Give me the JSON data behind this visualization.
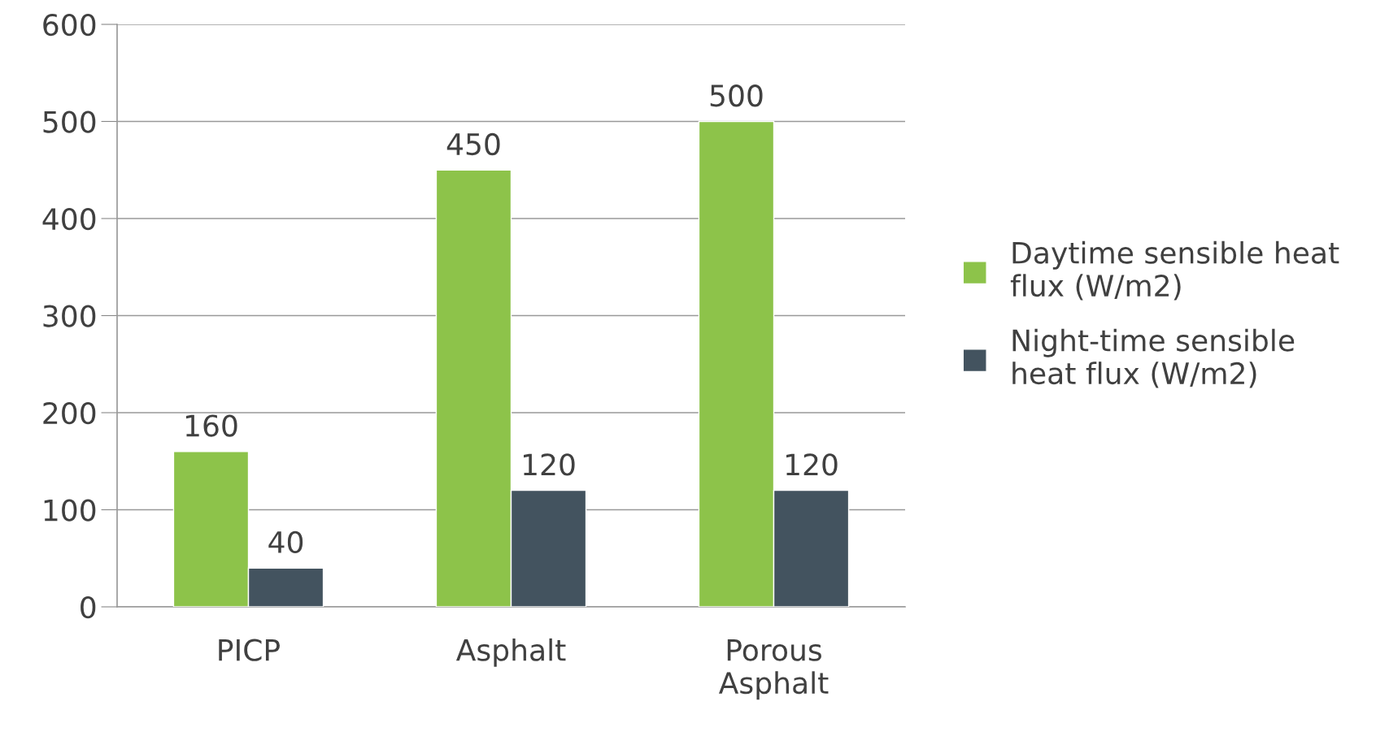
{
  "chart_data": {
    "type": "bar",
    "categories": [
      "PICP",
      "Asphalt",
      "Porous\nAsphalt"
    ],
    "series": [
      {
        "name": "Daytime sensible heat\nflux (W/m2)",
        "color": "#8dc34a",
        "values": [
          160,
          450,
          500
        ]
      },
      {
        "name": "Night-time sensible\nheat flux (W/m2)",
        "color": "#43535f",
        "values": [
          40,
          120,
          120
        ]
      }
    ],
    "ylim": [
      0,
      600
    ],
    "yticks": [
      0,
      100,
      200,
      300,
      400,
      500,
      600
    ],
    "grid": "y",
    "legend": "right",
    "data_labels": true
  }
}
